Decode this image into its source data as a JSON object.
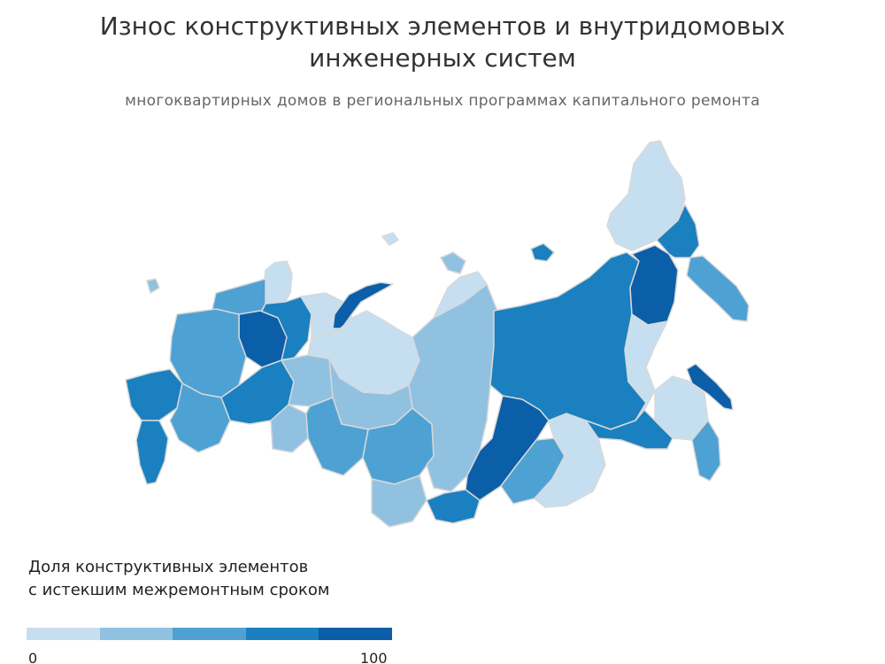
{
  "header": {
    "title_line1": "Износ конструктивных элементов и внутридомовых",
    "title_line2": "инженерных систем",
    "subtitle": "многоквартирных домов в региональных программах капитального ремонта"
  },
  "legend": {
    "title_line1": "Доля конструктивных элементов",
    "title_line2": "с истекшим межремонтным сроком",
    "min_label": "0",
    "max_label": "100",
    "classes": [
      {
        "range": "0–20",
        "color": "#c6dff0"
      },
      {
        "range": "20–40",
        "color": "#91c1e1"
      },
      {
        "range": "40–60",
        "color": "#4ea1d3"
      },
      {
        "range": "60–80",
        "color": "#1a80c0"
      },
      {
        "range": "80–100",
        "color": "#0b5ea8"
      }
    ]
  },
  "map": {
    "border_color": "#d8d8d8",
    "regions": [
      {
        "name": "murmansk",
        "class": 0
      },
      {
        "name": "karelia",
        "class": 2
      },
      {
        "name": "arkhangelsk",
        "class": 3
      },
      {
        "name": "komi",
        "class": 4
      },
      {
        "name": "nenets",
        "class": 0
      },
      {
        "name": "novaya-zemlya",
        "class": 4
      },
      {
        "name": "central-russia",
        "class": 2
      },
      {
        "name": "south-west",
        "class": 3
      },
      {
        "name": "north-caucasus",
        "class": 3
      },
      {
        "name": "volga",
        "class": 2
      },
      {
        "name": "bashkortostan",
        "class": 3
      },
      {
        "name": "orenburg",
        "class": 1
      },
      {
        "name": "ural",
        "class": 1
      },
      {
        "name": "yamal",
        "class": 0
      },
      {
        "name": "khanty-mansi",
        "class": 1
      },
      {
        "name": "tyumen-omsk",
        "class": 2
      },
      {
        "name": "tomsk-novosibirsk",
        "class": 2
      },
      {
        "name": "altai",
        "class": 1
      },
      {
        "name": "krasnoyarsk",
        "class": 1
      },
      {
        "name": "taymyr-north",
        "class": 0
      },
      {
        "name": "tuva",
        "class": 3
      },
      {
        "name": "irkutsk",
        "class": 4
      },
      {
        "name": "buryatia",
        "class": 2
      },
      {
        "name": "zabaykalsky",
        "class": 0
      },
      {
        "name": "yakutia",
        "class": 3
      },
      {
        "name": "magadan",
        "class": 4
      },
      {
        "name": "chukotka",
        "class": 0
      },
      {
        "name": "koryak-north",
        "class": 3
      },
      {
        "name": "kamchatka",
        "class": 2
      },
      {
        "name": "khabarovsk",
        "class": 0
      },
      {
        "name": "amur",
        "class": 3
      },
      {
        "name": "jewish-ao",
        "class": 0
      },
      {
        "name": "primorye",
        "class": 2
      },
      {
        "name": "sakhalin",
        "class": 4
      },
      {
        "name": "new-siberian-islands",
        "class": 3
      },
      {
        "name": "severnaya-zemlya",
        "class": 1
      },
      {
        "name": "kaliningrad",
        "class": 1
      }
    ]
  }
}
